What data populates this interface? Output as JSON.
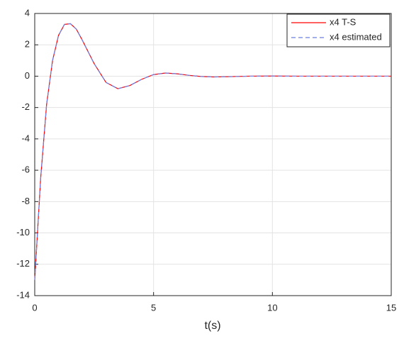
{
  "chart_data": {
    "type": "line",
    "xlabel": "t(s)",
    "x": [
      0,
      0.25,
      0.5,
      0.75,
      1,
      1.25,
      1.5,
      1.75,
      2,
      2.5,
      3,
      3.5,
      4,
      4.5,
      5,
      5.5,
      6,
      6.5,
      7,
      7.5,
      8,
      9,
      10,
      11,
      12,
      13,
      14,
      15
    ],
    "series": [
      {
        "name": "x4 T-S",
        "color": "#ff0000",
        "linestyle": "solid",
        "values": [
          -13,
          -6.5,
          -1.8,
          1.0,
          2.6,
          3.3,
          3.35,
          3.0,
          2.3,
          0.8,
          -0.4,
          -0.8,
          -0.6,
          -0.2,
          0.1,
          0.2,
          0.15,
          0.05,
          -0.02,
          -0.05,
          -0.04,
          0,
          0.01,
          0,
          0,
          0,
          0,
          0
        ]
      },
      {
        "name": "x4 estimated",
        "color": "#6a7fe0",
        "linestyle": "dashed",
        "values": [
          -13,
          -6.5,
          -1.8,
          1.0,
          2.6,
          3.3,
          3.35,
          3.0,
          2.3,
          0.8,
          -0.4,
          -0.8,
          -0.6,
          -0.2,
          0.1,
          0.2,
          0.15,
          0.05,
          -0.02,
          -0.05,
          -0.04,
          0,
          0.01,
          0,
          0,
          0,
          0,
          0
        ]
      }
    ],
    "xlim": [
      0,
      15
    ],
    "xticks": [
      0,
      5,
      10,
      15
    ],
    "ylim": [
      -14,
      4
    ],
    "yticks": [
      4,
      2,
      0,
      -2,
      -4,
      -6,
      -8,
      -10,
      -12,
      -14
    ],
    "grid": true,
    "legend": "upper-right"
  }
}
